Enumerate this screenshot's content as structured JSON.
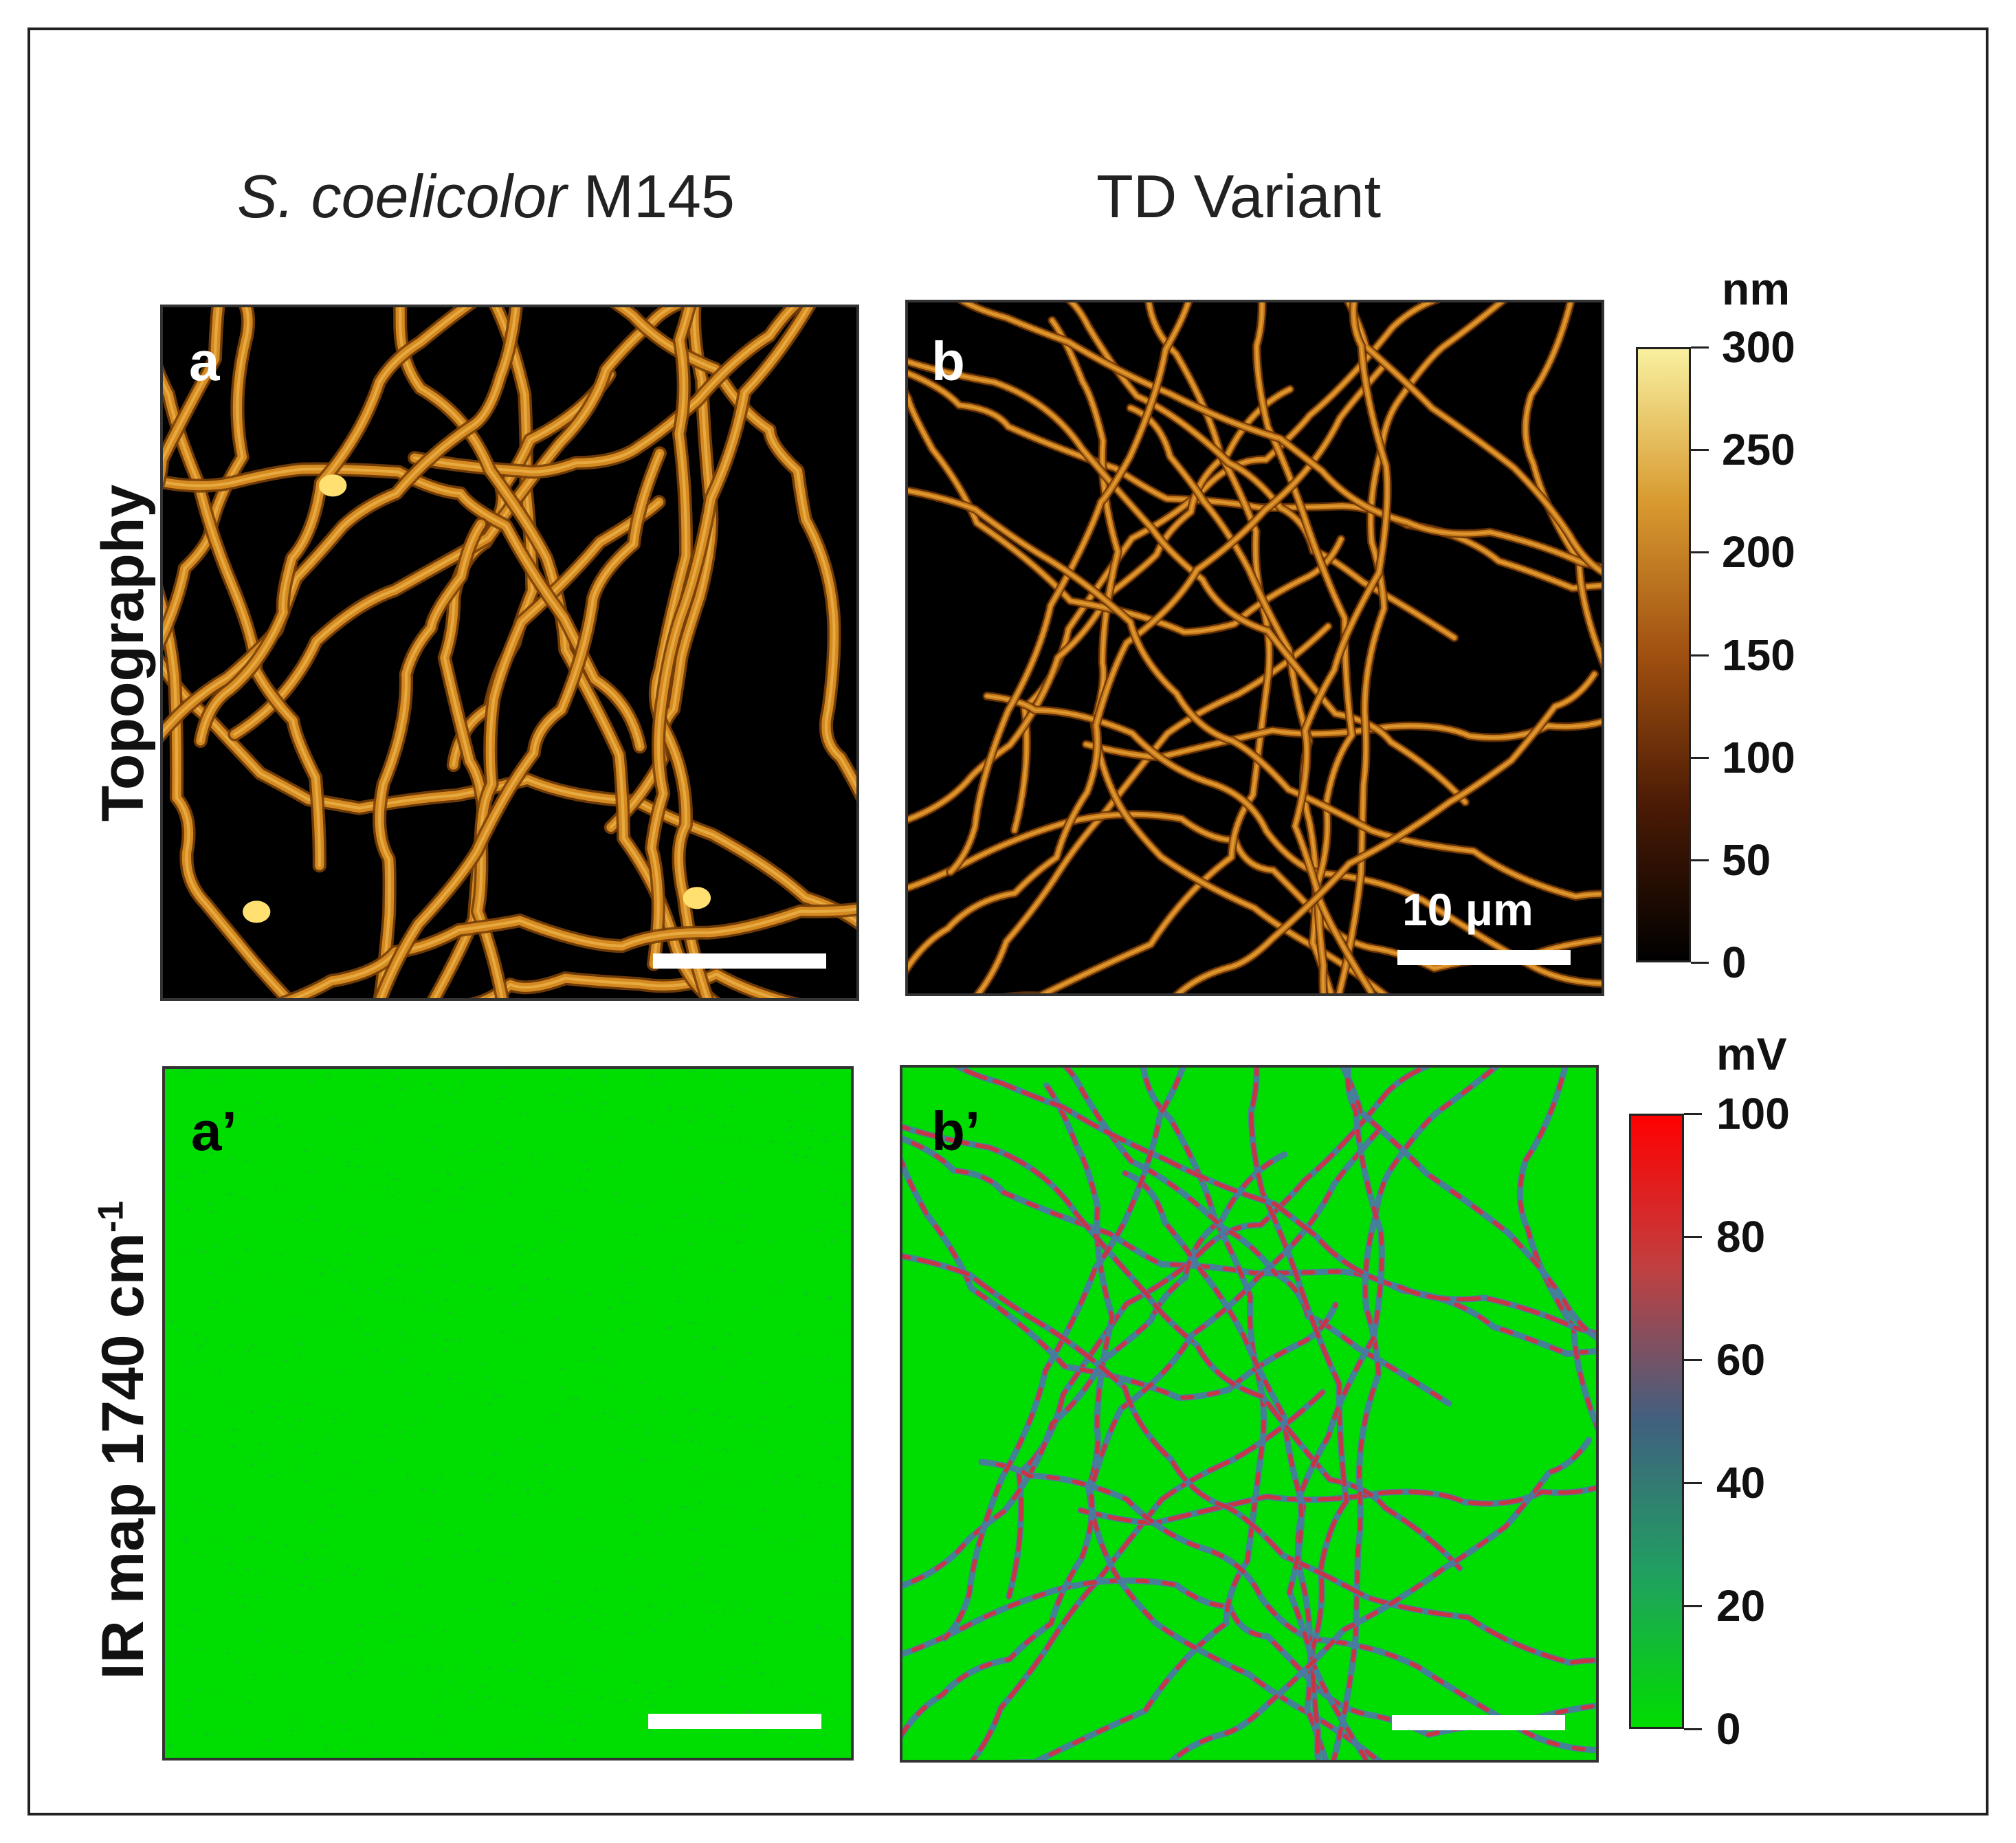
{
  "columns": {
    "left": {
      "italic": "S. coelicolor",
      "regular": " M145"
    },
    "right": "TD Variant"
  },
  "rows": {
    "top": "Topography",
    "bottom": {
      "text": "IR map 1740 cm",
      "sup": "-1"
    }
  },
  "panels": {
    "a": "a",
    "b": "b",
    "a_prime": "a’",
    "b_prime": "b’"
  },
  "scale_bar_label": "10 μm",
  "colorbar_topography": {
    "unit": "nm",
    "ticks": [
      "300",
      "250",
      "200",
      "150",
      "100",
      "50",
      "0"
    ],
    "colors": [
      "#f8f0a0",
      "#d89a30",
      "#a05010",
      "#4a1a05",
      "#000000"
    ]
  },
  "colorbar_ir": {
    "unit": "mV",
    "ticks": [
      "100",
      "80",
      "60",
      "40",
      "20",
      "0"
    ],
    "colors": [
      "#ff0000",
      "#c04040",
      "#406080",
      "#20a060",
      "#00dd00"
    ]
  },
  "map_colors": {
    "topo_background": "#000000",
    "topo_hyphae": "#d48a20",
    "topo_highlight": "#ffe070",
    "ir_background": "#00dd00",
    "ir_low_signal": "#4a7aa0",
    "ir_high_signal": "#d03040"
  }
}
